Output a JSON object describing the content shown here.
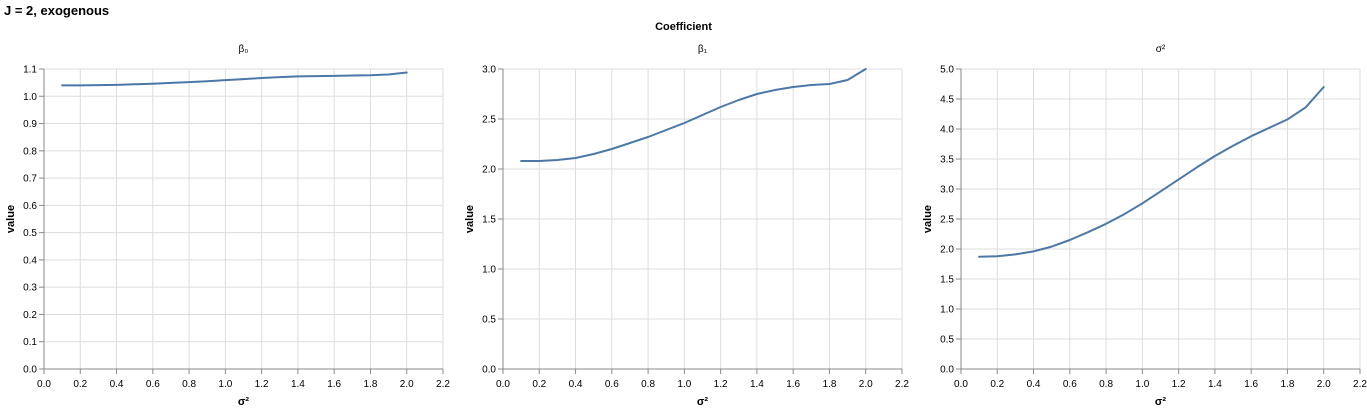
{
  "figure": {
    "title": "J = 2, exogenous",
    "facet_header": "Coefficient"
  },
  "colors": {
    "line": "#4c78a8",
    "grid": "#dddddd",
    "axis": "#888888"
  },
  "chart_data": [
    {
      "type": "line",
      "title": "β₀",
      "xlabel": "σ²",
      "ylabel": "value",
      "xlim": [
        0,
        2.2
      ],
      "ylim": [
        0,
        1.1
      ],
      "x_ticks": [
        "0.0",
        "0.2",
        "0.4",
        "0.6",
        "0.8",
        "1.0",
        "1.2",
        "1.4",
        "1.6",
        "1.8",
        "2.0",
        "2.2"
      ],
      "y_ticks": [
        "0.0",
        "0.1",
        "0.2",
        "0.3",
        "0.4",
        "0.5",
        "0.6",
        "0.7",
        "0.8",
        "0.9",
        "1.0",
        "1.1"
      ],
      "grid": true,
      "x": [
        0.1,
        0.2,
        0.3,
        0.4,
        0.5,
        0.6,
        0.7,
        0.8,
        0.9,
        1.0,
        1.1,
        1.2,
        1.3,
        1.4,
        1.5,
        1.6,
        1.7,
        1.8,
        1.9,
        2.0
      ],
      "values": [
        1.04,
        1.04,
        1.041,
        1.042,
        1.044,
        1.046,
        1.049,
        1.052,
        1.055,
        1.059,
        1.063,
        1.067,
        1.07,
        1.073,
        1.074,
        1.075,
        1.076,
        1.077,
        1.08,
        1.087
      ]
    },
    {
      "type": "line",
      "title": "β₁",
      "xlabel": "σ²",
      "ylabel": "value",
      "xlim": [
        0,
        2.2
      ],
      "ylim": [
        0,
        3.0
      ],
      "x_ticks": [
        "0.0",
        "0.2",
        "0.4",
        "0.6",
        "0.8",
        "1.0",
        "1.2",
        "1.4",
        "1.6",
        "1.8",
        "2.0",
        "2.2"
      ],
      "y_ticks": [
        "0.0",
        "0.5",
        "1.0",
        "1.5",
        "2.0",
        "2.5",
        "3.0"
      ],
      "grid": true,
      "x": [
        0.1,
        0.2,
        0.3,
        0.4,
        0.5,
        0.6,
        0.7,
        0.8,
        0.9,
        1.0,
        1.1,
        1.2,
        1.3,
        1.4,
        1.5,
        1.6,
        1.7,
        1.8,
        1.9,
        2.0
      ],
      "values": [
        2.08,
        2.08,
        2.09,
        2.11,
        2.15,
        2.2,
        2.26,
        2.32,
        2.39,
        2.46,
        2.54,
        2.62,
        2.69,
        2.75,
        2.79,
        2.82,
        2.84,
        2.85,
        2.89,
        3.0
      ]
    },
    {
      "type": "line",
      "title": "σ²",
      "xlabel": "σ²",
      "ylabel": "value",
      "xlim": [
        0,
        2.2
      ],
      "ylim": [
        0,
        5.0
      ],
      "x_ticks": [
        "0.0",
        "0.2",
        "0.4",
        "0.6",
        "0.8",
        "1.0",
        "1.2",
        "1.4",
        "1.6",
        "1.8",
        "2.0",
        "2.2"
      ],
      "y_ticks": [
        "0.0",
        "0.5",
        "1.0",
        "1.5",
        "2.0",
        "2.5",
        "3.0",
        "3.5",
        "4.0",
        "4.5",
        "5.0"
      ],
      "grid": true,
      "x": [
        0.1,
        0.2,
        0.3,
        0.4,
        0.5,
        0.6,
        0.7,
        0.8,
        0.9,
        1.0,
        1.1,
        1.2,
        1.3,
        1.4,
        1.5,
        1.6,
        1.7,
        1.8,
        1.9,
        2.0
      ],
      "values": [
        1.87,
        1.88,
        1.91,
        1.96,
        2.04,
        2.15,
        2.28,
        2.42,
        2.58,
        2.76,
        2.96,
        3.16,
        3.36,
        3.55,
        3.72,
        3.88,
        4.02,
        4.16,
        4.36,
        4.7
      ]
    }
  ]
}
